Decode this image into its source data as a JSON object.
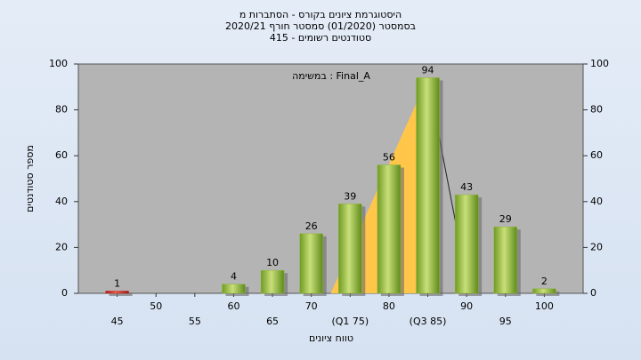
{
  "chart_data": {
    "type": "bar",
    "title": "היסטוגרמת ציונים בקורס - הסתברות מ",
    "subtitle": "בסמסטר  (01/2020)  סמסטר חורף 2020/21",
    "subtitle2": "סטודנטים רשומים - 415",
    "annotation": "במשימה : Final_A",
    "x_label": "טווח ציונים",
    "y_label": "מספר סטודנטים",
    "categories": [
      "45",
      "50",
      "55",
      "60",
      "65",
      "70",
      "(Q1 75)",
      "80",
      "(Q3 85)",
      "90",
      "95",
      "100"
    ],
    "values": [
      1,
      0,
      0,
      4,
      10,
      26,
      39,
      56,
      94,
      43,
      29,
      2
    ],
    "value_labels": [
      "1",
      null,
      null,
      "4",
      "10",
      "26",
      "39",
      "56",
      "94",
      "43",
      "29",
      "2"
    ],
    "colors": [
      "#d03a2a",
      "#8fb53c",
      "#8fb53c",
      "#8fb53c",
      "#8fb53c",
      "#8fb53c",
      "#8fb53c",
      "#8fb53c",
      "#8fb53c",
      "#8fb53c",
      "#8fb53c",
      "#8fb53c"
    ],
    "ylim": [
      0,
      100
    ],
    "yticks": [
      0,
      20,
      40,
      60,
      80,
      100
    ],
    "y2lim": [
      0,
      100
    ],
    "y2ticks": [
      0,
      20,
      40,
      60,
      80,
      100
    ],
    "grid": false
  }
}
